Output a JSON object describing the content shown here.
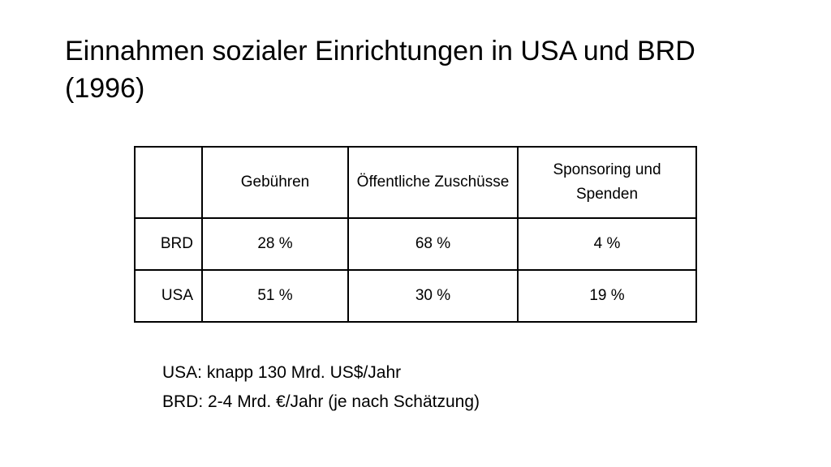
{
  "title": "Einnahmen sozialer Einrichtungen in USA und BRD (1996)",
  "table": {
    "headers": [
      "Gebühren",
      "Öffentliche Zuschüsse",
      "Sponsoring und Spenden"
    ],
    "rows": [
      {
        "label": "BRD",
        "cells": [
          "28 %",
          "68 %",
          "4 %"
        ]
      },
      {
        "label": "USA",
        "cells": [
          "51 %",
          "30 %",
          "19 %"
        ]
      }
    ]
  },
  "notes": [
    "USA: knapp 130 Mrd. US$/Jahr",
    "BRD: 2-4 Mrd. €/Jahr (je nach Schätzung)"
  ]
}
